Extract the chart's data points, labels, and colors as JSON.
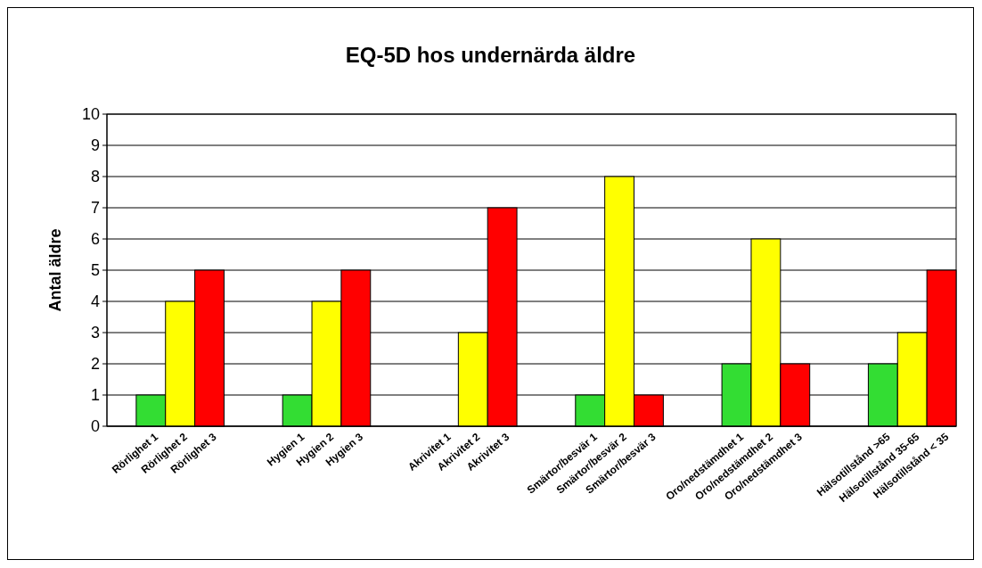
{
  "chart_data": {
    "type": "bar",
    "title": "EQ-5D hos undernärda äldre",
    "ylabel": "Antal äldre",
    "categories": [
      null,
      "Rörlighet 1",
      "Rörlighet 2",
      "Rörlighet 3",
      null,
      null,
      "Hygien 1",
      "Hygien 2",
      "Hygien 3",
      null,
      null,
      "Akrivitet 1",
      "Akrivitet 2",
      "Akrivitet 3",
      null,
      null,
      "Smärtor/besvär 1",
      "Smärtor/besvär 2",
      "Smärtor/besvär 3",
      null,
      null,
      "Oro/nedstämdhet 1",
      "Oro/nedstämdhet 2",
      "Oro/nedstämdhet 3",
      null,
      null,
      "Hälsotillstånd >65",
      "Hälsotillstånd 35-65",
      "Hälsotillstånd < 35"
    ],
    "values": [
      null,
      1,
      4,
      5,
      null,
      null,
      1,
      4,
      5,
      null,
      null,
      0,
      3,
      7,
      null,
      null,
      1,
      8,
      1,
      null,
      null,
      2,
      6,
      2,
      null,
      null,
      2,
      3,
      5
    ],
    "colors": [
      null,
      "#33dd33",
      "#ffff00",
      "#ff0000",
      null,
      null,
      "#33dd33",
      "#ffff00",
      "#ff0000",
      null,
      null,
      "#33dd33",
      "#ffff00",
      "#ff0000",
      null,
      null,
      "#33dd33",
      "#ffff00",
      "#ff0000",
      null,
      null,
      "#33dd33",
      "#ffff00",
      "#ff0000",
      null,
      null,
      "#33dd33",
      "#ffff00",
      "#ff0000"
    ],
    "ylim": [
      0,
      10
    ],
    "yticks": [
      0,
      1,
      2,
      3,
      4,
      5,
      6,
      7,
      8,
      9,
      10
    ],
    "grid": "y"
  }
}
